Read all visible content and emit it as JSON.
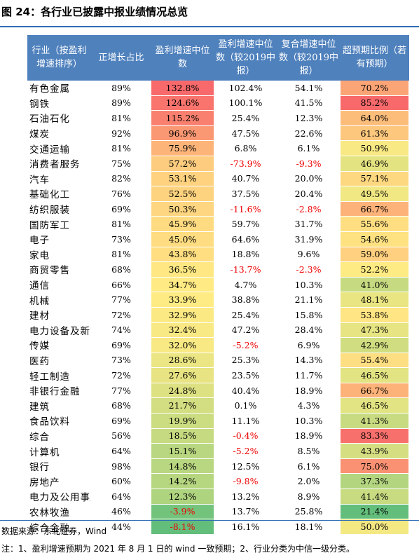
{
  "title": "图 24：各行业已披露中报业绩情况总览",
  "table": {
    "header": [
      "行业（按盈利增速排序）",
      "正增长占比",
      "盈利增速中位数",
      "盈利增速中位数（较2019中报）",
      "复合增速中位数（较2019中报）",
      "超预期比例（若有预期）"
    ],
    "rows": [
      [
        "有色金属",
        "89%",
        "132.8%",
        "102.4%",
        "54.1%",
        "70.2%"
      ],
      [
        "钢铁",
        "89%",
        "124.6%",
        "100.1%",
        "41.5%",
        "85.2%"
      ],
      [
        "石油石化",
        "81%",
        "115.2%",
        "25.4%",
        "12.3%",
        "64.0%"
      ],
      [
        "煤炭",
        "92%",
        "96.9%",
        "47.5%",
        "22.6%",
        "61.3%"
      ],
      [
        "交通运输",
        "81%",
        "75.9%",
        "6.8%",
        "6.1%",
        "50.9%"
      ],
      [
        "消费者服务",
        "75%",
        "57.2%",
        "-73.9%",
        "-9.3%",
        "46.9%"
      ],
      [
        "汽车",
        "82%",
        "53.1%",
        "40.7%",
        "20.0%",
        "57.1%"
      ],
      [
        "基础化工",
        "76%",
        "52.5%",
        "37.5%",
        "20.4%",
        "49.5%"
      ],
      [
        "纺织服装",
        "69%",
        "50.3%",
        "-11.6%",
        "-2.8%",
        "66.7%"
      ],
      [
        "国防军工",
        "81%",
        "45.9%",
        "59.7%",
        "31.7%",
        "55.6%"
      ],
      [
        "电子",
        "73%",
        "45.0%",
        "64.6%",
        "31.9%",
        "54.6%"
      ],
      [
        "家电",
        "81%",
        "43.8%",
        "18.8%",
        "9.6%",
        "59.0%"
      ],
      [
        "商贸零售",
        "68%",
        "36.5%",
        "-13.7%",
        "-2.3%",
        "52.2%"
      ],
      [
        "通信",
        "66%",
        "34.7%",
        "4.7%",
        "10.3%",
        "41.0%"
      ],
      [
        "机械",
        "77%",
        "33.9%",
        "38.8%",
        "21.1%",
        "48.1%"
      ],
      [
        "建材",
        "72%",
        "32.9%",
        "25.4%",
        "15.8%",
        "53.8%"
      ],
      [
        "电力设备及新能源",
        "74%",
        "32.4%",
        "47.2%",
        "28.4%",
        "47.3%"
      ],
      [
        "传媒",
        "69%",
        "32.0%",
        "-5.2%",
        "6.9%",
        "42.9%"
      ],
      [
        "医药",
        "73%",
        "28.6%",
        "25.3%",
        "14.3%",
        "55.4%"
      ],
      [
        "轻工制造",
        "72%",
        "27.6%",
        "23.5%",
        "11.7%",
        "46.5%"
      ],
      [
        "非银行金融",
        "77%",
        "24.8%",
        "40.4%",
        "18.9%",
        "66.7%"
      ],
      [
        "建筑",
        "68%",
        "21.7%",
        "0.1%",
        "4.3%",
        "46.5%"
      ],
      [
        "食品饮料",
        "69%",
        "19.9%",
        "11.1%",
        "10.3%",
        "41.3%"
      ],
      [
        "综合",
        "56%",
        "18.5%",
        "-0.4%",
        "18.9%",
        "83.3%"
      ],
      [
        "计算机",
        "64%",
        "15.1%",
        "-5.2%",
        "8.5%",
        "43.9%"
      ],
      [
        "银行",
        "98%",
        "14.8%",
        "12.5%",
        "6.1%",
        "75.0%"
      ],
      [
        "房地产",
        "60%",
        "14.2%",
        "-9.8%",
        "2.0%",
        "37.3%"
      ],
      [
        "电力及公用事业",
        "64%",
        "12.3%",
        "13.2%",
        "8.9%",
        "41.4%"
      ],
      [
        "农林牧渔",
        "46%",
        "-3.9%",
        "13.7%",
        "25.8%",
        "21.4%"
      ],
      [
        "综合金融",
        "44%",
        "-8.1%",
        "16.1%",
        "18.1%",
        "50.0%"
      ]
    ]
  },
  "source": "数据来源：东北证券，Wind",
  "note": "注：1、盈利增速预期为 2021 年 8 月 1 日的 wind 一致预期；2、行业分类为中信一级分类。"
}
